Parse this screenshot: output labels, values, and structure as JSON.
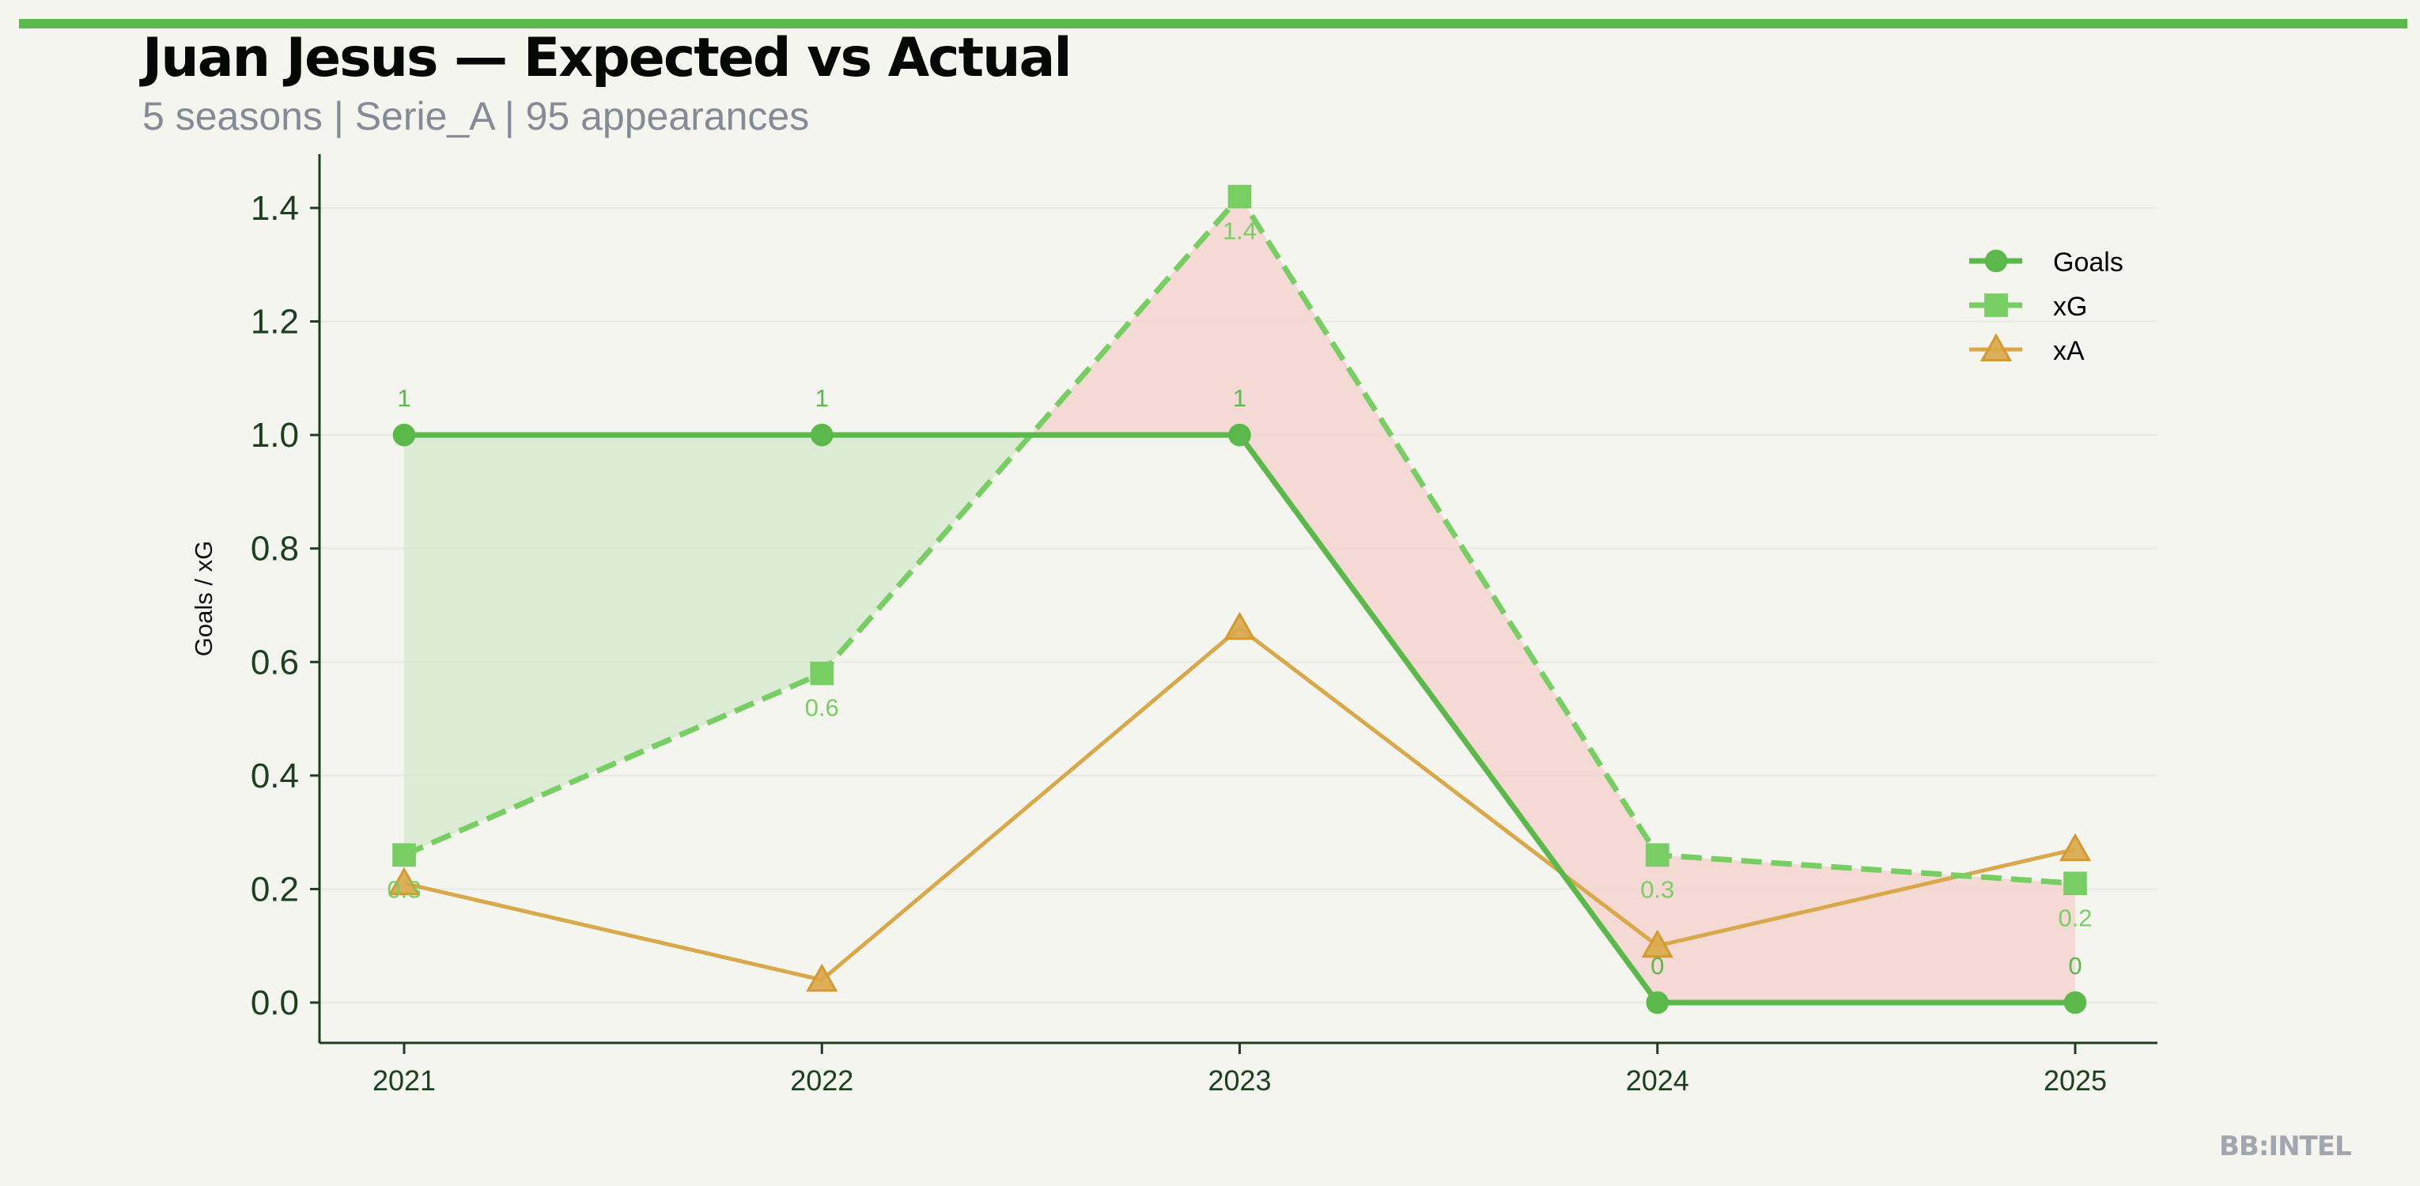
{
  "header": {
    "title": "Juan Jesus — Expected vs Actual",
    "subtitle": "5 seasons | Serie_A | 95 appearances",
    "accent_color": "#5ab94a"
  },
  "watermark": "BB:INTEL",
  "chart_data": {
    "type": "line",
    "title": "Juan Jesus — Expected vs Actual",
    "xlabel": "",
    "ylabel": "Goals / xG",
    "categories": [
      "2021",
      "2022",
      "2023",
      "2024",
      "2025"
    ],
    "ylim": [
      -0.07,
      1.5
    ],
    "yticks": [
      "0.0",
      "0.2",
      "0.4",
      "0.6",
      "0.8",
      "1.0",
      "1.2",
      "1.4"
    ],
    "grid": "horizontal",
    "legend": "bottom-right",
    "series": [
      {
        "name": "Goals",
        "values": [
          1,
          1,
          1,
          0,
          0
        ],
        "color": "#5ab94a",
        "marker": "circle",
        "style": "solid",
        "labels": [
          "1",
          "1",
          "1",
          "0",
          "0"
        ]
      },
      {
        "name": "xG",
        "values": [
          0.26,
          0.58,
          1.42,
          0.26,
          0.21
        ],
        "color": "#77cf63",
        "marker": "square",
        "style": "dashed",
        "labels": [
          "0.3",
          "0.6",
          "1.4",
          "0.3",
          "0.2"
        ]
      },
      {
        "name": "xA",
        "values": [
          0.21,
          0.04,
          0.66,
          0.1,
          0.27
        ],
        "color": "#d9a84a",
        "marker": "triangle",
        "style": "solid"
      }
    ],
    "fill_overperform_color": "#d6e9cf",
    "fill_underperform_color": "#f5d3cf"
  }
}
